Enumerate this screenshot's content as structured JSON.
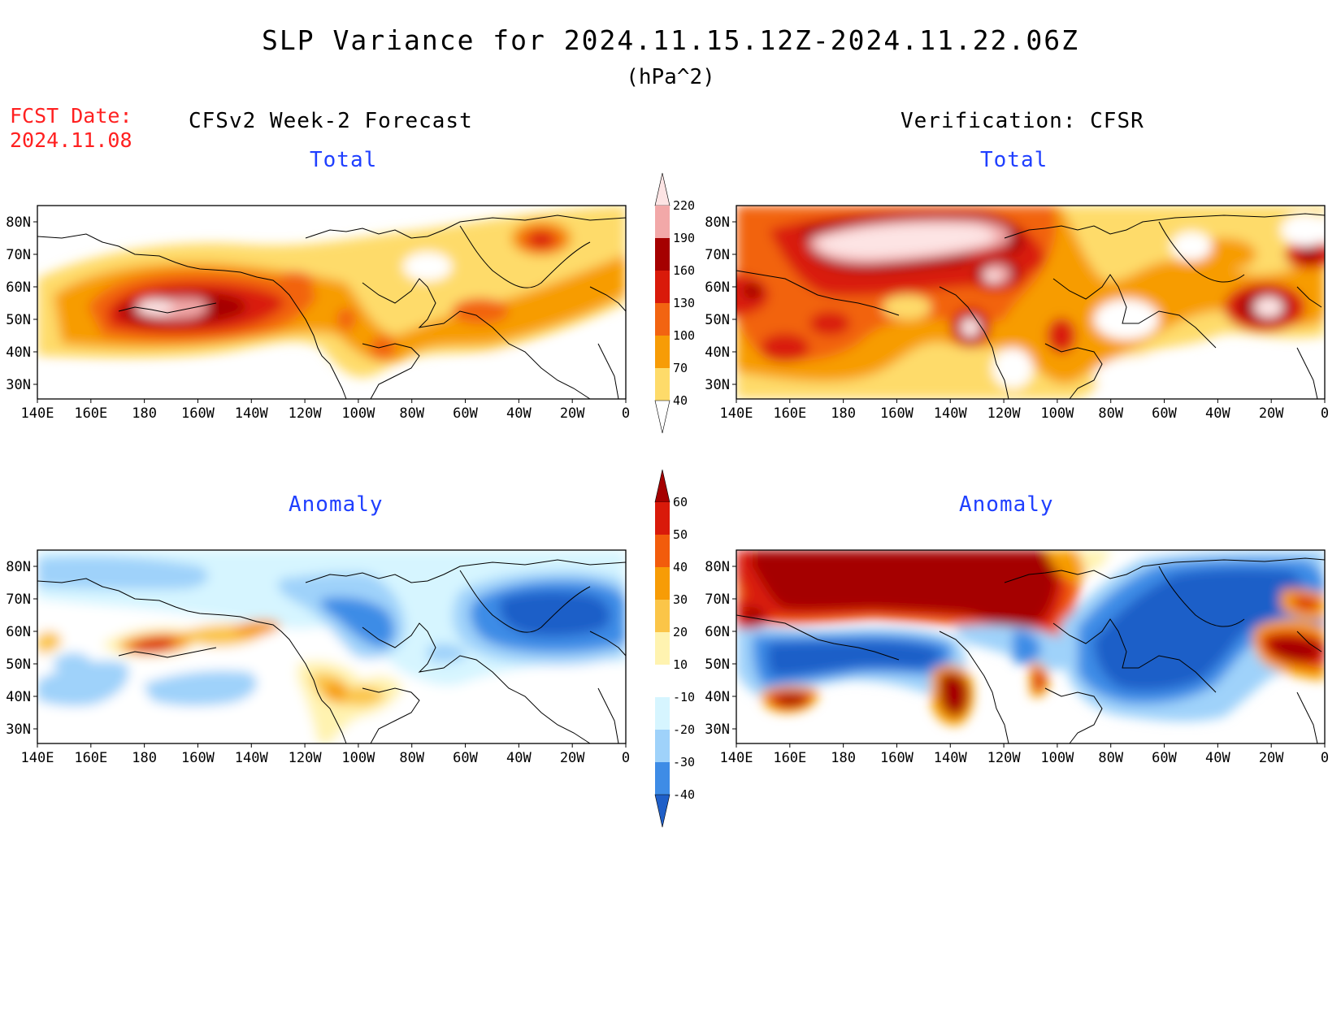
{
  "header": {
    "title": "SLP Variance for 2024.11.15.12Z-2024.11.22.06Z",
    "units": "(hPa^2)",
    "fcst_label": "FCST Date:",
    "fcst_date": "2024.11.08"
  },
  "columns": {
    "left": "CFSv2 Week-2 Forecast",
    "right": "Verification: CFSR"
  },
  "panels": {
    "fc_total": "Total",
    "vf_total": "Total",
    "fc_anom": "Anomaly",
    "vf_anom": "Anomaly"
  },
  "axes": {
    "lon_labels": [
      "140E",
      "160E",
      "180",
      "160W",
      "140W",
      "120W",
      "100W",
      "80W",
      "60W",
      "40W",
      "20W",
      "0"
    ],
    "lat_labels": [
      "80N",
      "70N",
      "60N",
      "50N",
      "40N",
      "30N"
    ]
  },
  "colorbars": {
    "total": {
      "labels": [
        "220",
        "190",
        "160",
        "130",
        "100",
        "70",
        "40"
      ],
      "colors": [
        "#fde4e4",
        "#f2a8a8",
        "#a50000",
        "#d91a0a",
        "#f26411",
        "#f79c06",
        "#fedb6a"
      ]
    },
    "anomaly": {
      "labels": [
        "60",
        "50",
        "40",
        "30",
        "20",
        "10",
        "-10",
        "-20",
        "-30",
        "-40"
      ],
      "colors": [
        "#a50000",
        "#d91a0a",
        "#f25c0c",
        "#f79c06",
        "#fbc548",
        "#fff3b0",
        "#ffffff",
        "#d6f5ff",
        "#9fd2fa",
        "#3e8ce6",
        "#1f5fc8"
      ]
    }
  },
  "colors": {
    "title_red": "#ff2020",
    "subtitle_blue": "#1f3fff"
  }
}
